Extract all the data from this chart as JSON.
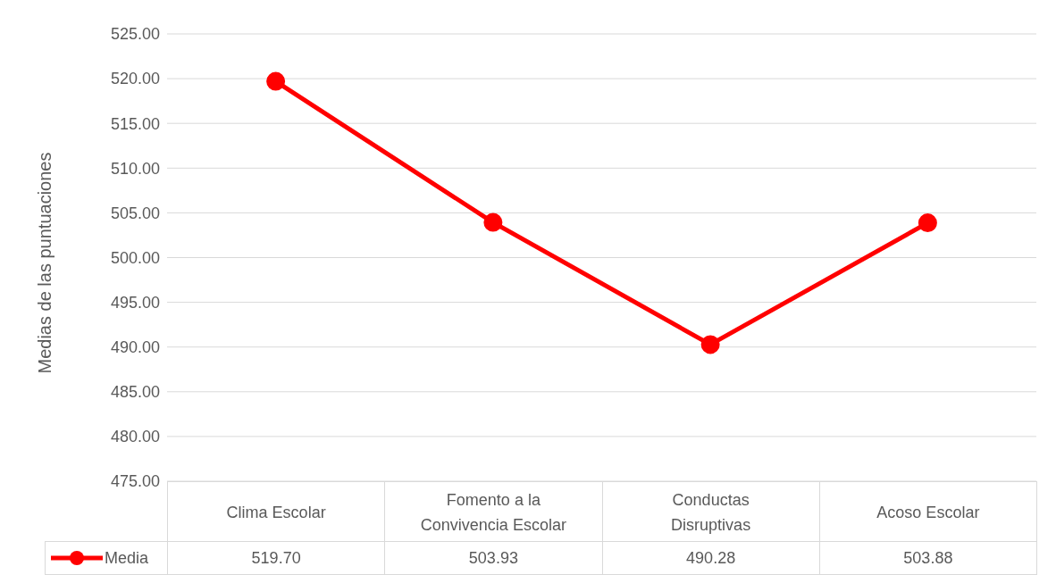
{
  "chart_data": {
    "type": "line",
    "ylabel": "Medias de las puntuaciones",
    "categories": [
      "Clima Escolar",
      "Fomento a la Convivencia Escolar",
      "Conductas Disruptivas",
      "Acoso Escolar"
    ],
    "series": [
      {
        "name": "Media",
        "color": "#ff0000",
        "values": [
          519.7,
          503.93,
          490.28,
          503.88
        ],
        "value_labels": [
          "519.70",
          "503.93",
          "490.28",
          "503.88"
        ]
      }
    ],
    "ylim": [
      475,
      525
    ],
    "yticks": [
      {
        "value": 475,
        "label": "475.00"
      },
      {
        "value": 480,
        "label": "480.00"
      },
      {
        "value": 485,
        "label": "485.00"
      },
      {
        "value": 490,
        "label": "490.00"
      },
      {
        "value": 495,
        "label": "495.00"
      },
      {
        "value": 500,
        "label": "500.00"
      },
      {
        "value": 505,
        "label": "505.00"
      },
      {
        "value": 510,
        "label": "510.00"
      },
      {
        "value": 515,
        "label": "515.00"
      },
      {
        "value": 520,
        "label": "520.00"
      },
      {
        "value": 525,
        "label": "525.00"
      }
    ],
    "grid": "y",
    "legend": "bottom",
    "marker": "circle",
    "line_style": "solid"
  }
}
